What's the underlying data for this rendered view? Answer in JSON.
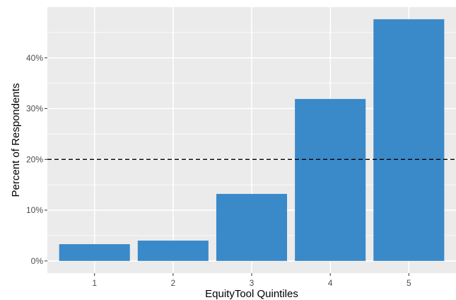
{
  "chart_data": {
    "type": "bar",
    "title": "",
    "xlabel": "EquityTool Quintiles",
    "ylabel": "Percent of Respondents",
    "categories": [
      "1",
      "2",
      "3",
      "4",
      "5"
    ],
    "values": [
      3.3,
      4.0,
      13.2,
      31.9,
      47.6
    ],
    "ylim": [
      -2.4,
      50
    ],
    "yticks": [
      0,
      10,
      20,
      30,
      40
    ],
    "ytick_labels": [
      "0%",
      "10%",
      "20%",
      "30%",
      "40%"
    ],
    "reference_line": {
      "value": 20,
      "style": "dashed"
    },
    "grid": true,
    "legend": "none",
    "colors": {
      "bar": "#3a89c9",
      "panel": "#ebebeb",
      "grid_major": "#ffffff",
      "reference_line": "#000000"
    }
  }
}
